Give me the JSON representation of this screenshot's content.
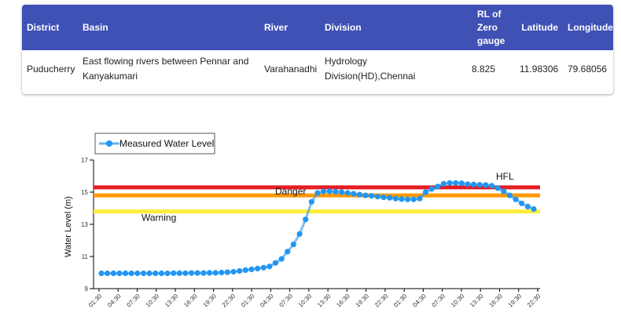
{
  "table": {
    "headers": {
      "district": "District",
      "basin": "Basin",
      "river": "River",
      "division": "Division",
      "rl": "RL of Zero gauge",
      "latitude": "Latitude",
      "longitude": "Longitude"
    },
    "row": {
      "district": "Puducherry",
      "basin": "East flowing rivers between Pennar and Kanyakumari",
      "river": "Varahanadhi",
      "division": "Hydrology Division(HD),Chennai",
      "rl": "8.825",
      "latitude": "11.98306",
      "longitude": "79.68056"
    },
    "header_color": "#3f51b5"
  },
  "chart_data": {
    "type": "line",
    "legend": "Measured Water Level",
    "legend_placement": "top-left",
    "ylabel": "Water Level (m)",
    "ylim": [
      9,
      17
    ],
    "yticks": [
      "9",
      "11",
      "13",
      "15",
      "17"
    ],
    "xticklabels": [
      "01:30",
      "04:30",
      "07:30",
      "10:30",
      "13:30",
      "16:30",
      "19:30",
      "22:30",
      "01:30",
      "04:30",
      "07:30",
      "10:30",
      "13:30",
      "16:30",
      "19:30",
      "22:30",
      "01:30",
      "04:30",
      "07:30",
      "10:30",
      "13:30",
      "16:30",
      "19:30",
      "22:30"
    ],
    "thresholds": [
      {
        "label": "HFL",
        "value": 15.3,
        "color": "#e51c23"
      },
      {
        "label": "Danger",
        "value": 14.8,
        "color": "#ff9800"
      },
      {
        "label": "Warning",
        "value": 13.8,
        "color": "#ffeb3b"
      }
    ],
    "series": [
      {
        "name": "Measured Water Level",
        "color": "#2196f3",
        "values": [
          9.95,
          9.95,
          9.95,
          9.95,
          9.95,
          9.95,
          9.95,
          9.95,
          9.95,
          9.95,
          9.95,
          9.95,
          9.96,
          9.96,
          9.96,
          9.97,
          9.97,
          9.97,
          9.98,
          9.98,
          10.0,
          10.02,
          10.05,
          10.1,
          10.15,
          10.2,
          10.25,
          10.3,
          10.38,
          10.6,
          10.85,
          11.3,
          11.75,
          12.4,
          13.3,
          14.4,
          14.95,
          15.05,
          15.05,
          15.03,
          15.0,
          14.95,
          14.9,
          14.85,
          14.8,
          14.77,
          14.72,
          14.68,
          14.65,
          14.6,
          14.57,
          14.55,
          14.55,
          14.6,
          15.0,
          15.2,
          15.35,
          15.52,
          15.57,
          15.57,
          15.55,
          15.5,
          15.48,
          15.46,
          15.45,
          15.4,
          15.25,
          15.05,
          14.8,
          14.55,
          14.3,
          14.1,
          13.95
        ]
      }
    ]
  }
}
